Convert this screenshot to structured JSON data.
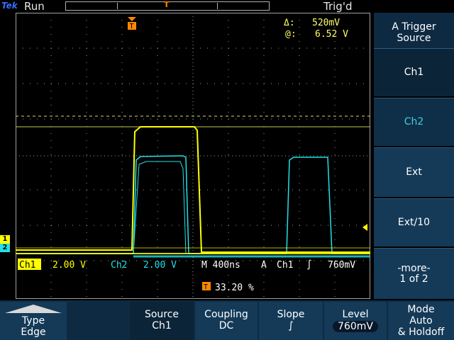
{
  "topbar": {
    "brand": "Tek",
    "run_state": "Run",
    "trigger_status": "Trig'd",
    "trigger_marker": "T"
  },
  "cursor_readout": {
    "delta_symbol": "Δ:",
    "delta_value": "520mV",
    "at_symbol": "@:",
    "at_value": "6.52 V"
  },
  "channel_readout": {
    "ch1_name": "Ch1",
    "ch1_scale": "2.00 V",
    "ch2_name": "Ch2",
    "ch2_scale": "2.00 V",
    "timebase": "M 400ns",
    "trigger_label": "A",
    "trigger_source": "Ch1",
    "trigger_slope_glyph": "∫",
    "trigger_level": "760mV",
    "trigger_position": "33.20 %",
    "trigger_pos_marker": "T"
  },
  "ground_markers": {
    "ch1": "1",
    "ch2": "2"
  },
  "side_menu": {
    "title_line1": "A Trigger",
    "title_line2": "Source",
    "items": [
      {
        "label": "Ch1"
      },
      {
        "label": "Ch2"
      },
      {
        "label": "Ext"
      },
      {
        "label": "Ext/10"
      },
      {
        "label_line1": "-more-",
        "label_line2": "1 of 2"
      }
    ]
  },
  "bottom_menu": {
    "type_label": "Type",
    "type_value": "Edge",
    "source_label": "Source",
    "source_value": "Ch1",
    "coupling_label": "Coupling",
    "coupling_value": "DC",
    "slope_label": "Slope",
    "slope_value": "∫",
    "level_label": "Level",
    "level_value": "760mV",
    "mode_line1": "Mode",
    "mode_line2": "Auto",
    "mode_line3": "& Holdoff"
  },
  "colors": {
    "ch1": "#ffff00",
    "ch2": "#22e0e8",
    "trigger_marker": "#ff8800",
    "grid": "#9a9a9a",
    "menu_bg": "#143a58"
  }
}
